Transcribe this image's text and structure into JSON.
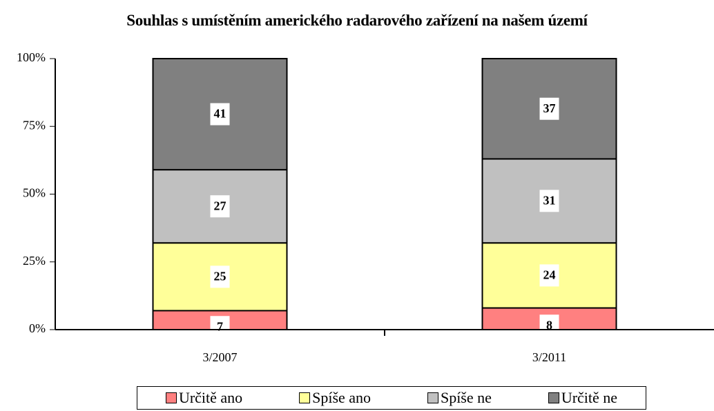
{
  "chart_data": {
    "type": "stacked_bar",
    "title": "Souhlas s umístěním amerického radarového zařízení na našem území",
    "categories": [
      "3/2007",
      "3/2011"
    ],
    "series": [
      {
        "name": "Určitě ano",
        "color": "#ff8080",
        "values": [
          7,
          8
        ]
      },
      {
        "name": "Spíše ano",
        "color": "#ffff99",
        "values": [
          25,
          24
        ]
      },
      {
        "name": "Spíše ne",
        "color": "#c0c0c0",
        "values": [
          27,
          31
        ]
      },
      {
        "name": "Určitě ne",
        "color": "#808080",
        "values": [
          41,
          37
        ]
      }
    ],
    "ylim": [
      0,
      100
    ],
    "yticks": [
      {
        "value": 0,
        "label": "0%"
      },
      {
        "value": 25,
        "label": "25%"
      },
      {
        "value": 50,
        "label": "50%"
      },
      {
        "value": 75,
        "label": "75%"
      },
      {
        "value": 100,
        "label": "100%"
      }
    ],
    "legend": "bottom"
  }
}
